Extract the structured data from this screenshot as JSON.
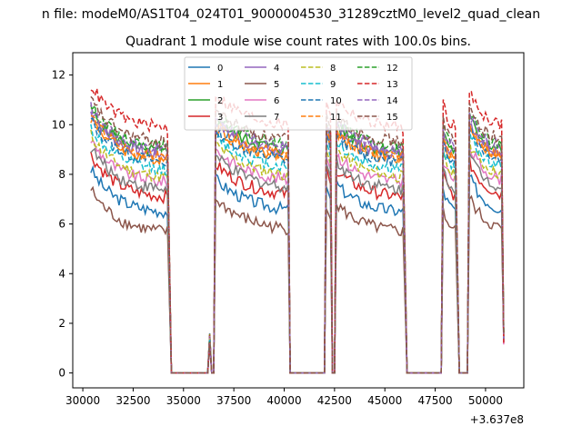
{
  "chart_data": {
    "type": "line",
    "suptitle": "n file: modeM0/AS1T04_024T01_9000004530_31289cztM0_level2_quad_clean",
    "title": "Quadrant 1 module wise count rates with 100.0s bins.",
    "xlabel": "",
    "ylabel": "",
    "x_offset_label": "+3.637e8",
    "xlim": [
      29500,
      51900
    ],
    "ylim": [
      -0.6,
      12.9
    ],
    "x_ticks": [
      30000,
      32500,
      35000,
      37500,
      40000,
      42500,
      45000,
      47500,
      50000
    ],
    "x_tick_labels": [
      "30000",
      "32500",
      "35000",
      "37500",
      "40000",
      "42500",
      "45000",
      "47500",
      "50000"
    ],
    "y_ticks": [
      0,
      2,
      4,
      6,
      8,
      10,
      12
    ],
    "y_tick_labels": [
      "0",
      "2",
      "4",
      "6",
      "8",
      "10",
      "12"
    ],
    "grid": false,
    "legend_position": "top-center",
    "segments": [
      {
        "start": 30400,
        "end": 34200
      },
      {
        "start": 36600,
        "end": 40200
      },
      {
        "start": 42100,
        "end": 42300
      },
      {
        "start": 42600,
        "end": 45900
      },
      {
        "start": 47900,
        "end": 48500
      },
      {
        "start": 49200,
        "end": 50800
      }
    ],
    "gaps": [
      {
        "start": 34400,
        "end": 36200
      },
      {
        "start": 36400,
        "end": 36500
      },
      {
        "start": 40300,
        "end": 42000
      },
      {
        "start": 42400,
        "end": 42500
      },
      {
        "start": 46100,
        "end": 47800
      },
      {
        "start": 48700,
        "end": 49100
      }
    ],
    "spikes": [
      {
        "x": 36300,
        "y": 1.6
      }
    ],
    "series": [
      {
        "name": "0",
        "color": "#1f77b4",
        "dash": "solid",
        "level": 6.4
      },
      {
        "name": "1",
        "color": "#ff7f0e",
        "dash": "solid",
        "level": 8.5
      },
      {
        "name": "2",
        "color": "#2ca02c",
        "dash": "solid",
        "level": 8.8
      },
      {
        "name": "3",
        "color": "#d62728",
        "dash": "solid",
        "level": 7.0
      },
      {
        "name": "4",
        "color": "#9467bd",
        "dash": "solid",
        "level": 8.7
      },
      {
        "name": "5",
        "color": "#8c564b",
        "dash": "solid",
        "level": 5.6
      },
      {
        "name": "6",
        "color": "#e377c2",
        "dash": "solid",
        "level": 7.6
      },
      {
        "name": "7",
        "color": "#7f7f7f",
        "dash": "solid",
        "level": 7.3
      },
      {
        "name": "8",
        "color": "#bcbd22",
        "dash": "dashed",
        "level": 7.8
      },
      {
        "name": "9",
        "color": "#17becf",
        "dash": "dashed",
        "level": 8.1
      },
      {
        "name": "10",
        "color": "#1f77b4",
        "dash": "dashed",
        "level": 8.4
      },
      {
        "name": "11",
        "color": "#ff7f0e",
        "dash": "dashed",
        "level": 8.6
      },
      {
        "name": "12",
        "color": "#2ca02c",
        "dash": "dashed",
        "level": 9.0
      },
      {
        "name": "13",
        "color": "#d62728",
        "dash": "dashed",
        "level": 9.8
      },
      {
        "name": "14",
        "color": "#9467bd",
        "dash": "dashed",
        "level": 8.9
      },
      {
        "name": "15",
        "color": "#8c564b",
        "dash": "dashed",
        "level": 9.2
      }
    ]
  }
}
